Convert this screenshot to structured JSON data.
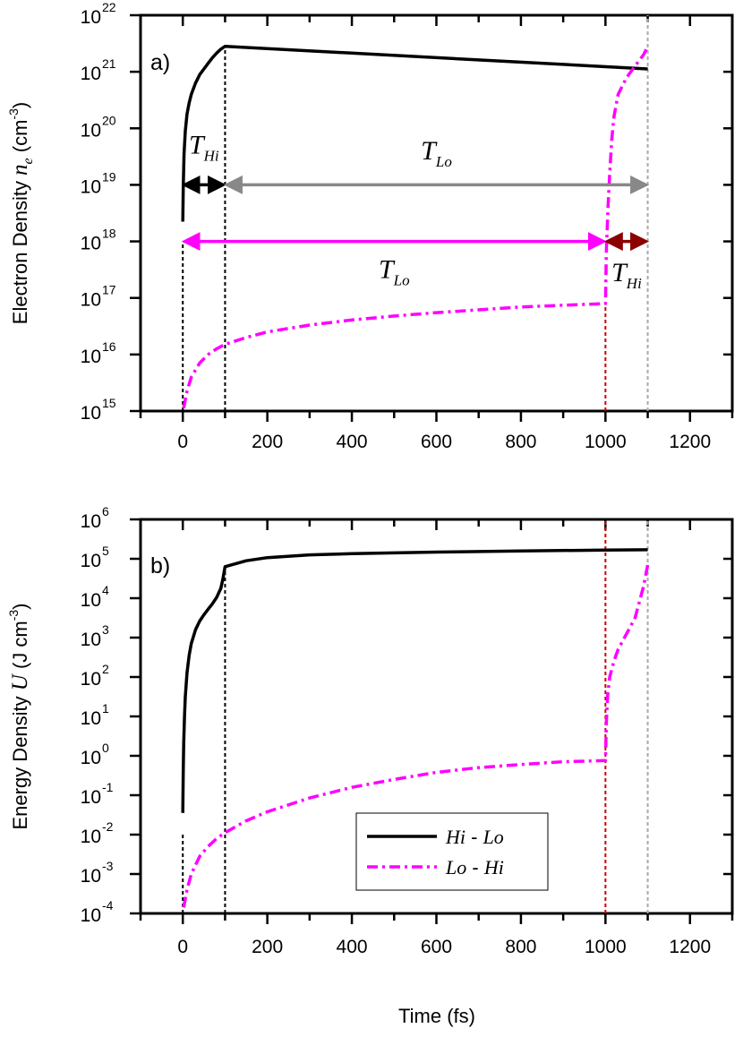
{
  "chart_data": [
    {
      "type": "line",
      "panel_label": "a)",
      "ylabel_parts": {
        "pre": "Electron Density ",
        "var": "n",
        "sub": "e",
        "unit_pre": " (cm",
        "unit_exp": "-3",
        "unit_post": ")"
      },
      "xlim": [
        -100,
        1300
      ],
      "x_ticks": [
        0,
        200,
        400,
        600,
        800,
        1000,
        1200
      ],
      "y_log_range": [
        15,
        22
      ],
      "y_tick_exponents": [
        "15",
        "16",
        "17",
        "18",
        "19",
        "20",
        "21",
        "22"
      ],
      "series": [
        {
          "name": "Hi - Lo",
          "color": "#000000",
          "style": "solid",
          "x": [
            0,
            1,
            3,
            6,
            10,
            15,
            20,
            30,
            40,
            50,
            60,
            70,
            80,
            90,
            100,
            1100
          ],
          "log10y": [
            18.35,
            18.95,
            19.55,
            19.95,
            20.25,
            20.45,
            20.6,
            20.8,
            20.95,
            21.05,
            21.15,
            21.25,
            21.33,
            21.4,
            21.45,
            21.05
          ]
        },
        {
          "name": "Lo - Hi",
          "color": "#ff00ff",
          "style": "dashdot",
          "x": [
            2,
            10,
            20,
            40,
            60,
            80,
            100,
            150,
            200,
            300,
            400,
            500,
            600,
            700,
            800,
            900,
            1000,
            1002,
            1006,
            1010,
            1015,
            1020,
            1030,
            1050,
            1070,
            1090,
            1100
          ],
          "log10y": [
            15.05,
            15.35,
            15.6,
            15.85,
            16.0,
            16.1,
            16.18,
            16.3,
            16.4,
            16.52,
            16.61,
            16.68,
            16.74,
            16.79,
            16.84,
            16.87,
            16.9,
            17.8,
            18.6,
            19.2,
            19.8,
            20.2,
            20.6,
            20.9,
            21.1,
            21.3,
            21.45
          ]
        }
      ],
      "vlines": [
        {
          "x": 0,
          "color": "#000000",
          "from": 15,
          "to": 18.0
        },
        {
          "x": 100,
          "color": "#000000",
          "from": 15,
          "to": 21.45
        },
        {
          "x": 1000,
          "color": "#cc0000",
          "from": 15,
          "to": 16.9
        },
        {
          "x": 1100,
          "color": "#aaaaaa",
          "from": 15,
          "to": 22
        }
      ],
      "arrows": [
        {
          "x0": 0,
          "x1": 100,
          "log10y": 19,
          "color": "#000000"
        },
        {
          "x0": 100,
          "x1": 1100,
          "log10y": 19,
          "color": "#888888"
        },
        {
          "x0": 0,
          "x1": 1000,
          "log10y": 18,
          "color": "#ff00ff"
        },
        {
          "x0": 1000,
          "x1": 1100,
          "log10y": 18,
          "color": "#8b0000"
        }
      ],
      "annotations": [
        {
          "main": "T",
          "sub": "Hi",
          "x": 50,
          "log10y": 19.55
        },
        {
          "main": "T",
          "sub": "Lo",
          "x": 600,
          "log10y": 19.45
        },
        {
          "main": "T",
          "sub": "Lo",
          "x": 500,
          "log10y": 17.35
        },
        {
          "main": "T",
          "sub": "Hi",
          "x": 1050,
          "log10y": 17.3
        }
      ]
    },
    {
      "type": "line",
      "panel_label": "b)",
      "ylabel_parts": {
        "pre": "Energy Density ",
        "var": "U",
        "sub": "",
        "unit_pre": " (J cm",
        "unit_exp": "-3",
        "unit_post": ")"
      },
      "xlim": [
        -100,
        1300
      ],
      "x_ticks": [
        0,
        200,
        400,
        600,
        800,
        1000,
        1200
      ],
      "y_log_range": [
        -4,
        6
      ],
      "y_tick_exponents": [
        "-4",
        "-3",
        "-2",
        "-1",
        "0",
        "1",
        "2",
        "3",
        "4",
        "5",
        "6"
      ],
      "series": [
        {
          "name": "Hi - Lo",
          "color": "#000000",
          "style": "solid",
          "x": [
            0,
            1,
            2,
            4,
            6,
            10,
            15,
            20,
            30,
            40,
            50,
            60,
            70,
            80,
            90,
            95,
            100,
            150,
            200,
            300,
            400,
            600,
            800,
            1000,
            1100
          ],
          "log10y": [
            -1.45,
            -0.4,
            0.3,
            1.0,
            1.5,
            2.1,
            2.55,
            2.85,
            3.2,
            3.42,
            3.58,
            3.72,
            3.86,
            4.02,
            4.25,
            4.5,
            4.8,
            4.95,
            5.03,
            5.1,
            5.13,
            5.17,
            5.2,
            5.22,
            5.23
          ]
        },
        {
          "name": "Lo - Hi",
          "color": "#ff00ff",
          "style": "dashdot",
          "x": [
            2,
            10,
            20,
            40,
            60,
            80,
            100,
            150,
            200,
            300,
            400,
            500,
            600,
            700,
            800,
            900,
            1000,
            1002,
            1005,
            1010,
            1020,
            1030,
            1050,
            1070,
            1090,
            1100
          ],
          "log10y": [
            -3.85,
            -3.4,
            -3.0,
            -2.55,
            -2.3,
            -2.1,
            -1.95,
            -1.65,
            -1.42,
            -1.07,
            -0.8,
            -0.6,
            -0.42,
            -0.3,
            -0.22,
            -0.15,
            -0.12,
            0.8,
            1.5,
            2.0,
            2.4,
            2.7,
            3.1,
            3.5,
            4.3,
            4.85
          ]
        }
      ],
      "vlines": [
        {
          "x": 0,
          "color": "#000000",
          "from": -4,
          "to": -2
        },
        {
          "x": 100,
          "color": "#000000",
          "from": -4,
          "to": 4.8
        },
        {
          "x": 1000,
          "color": "#cc0000",
          "from": -4,
          "to": 6
        },
        {
          "x": 1100,
          "color": "#aaaaaa",
          "from": -4,
          "to": 6
        }
      ],
      "legend": {
        "placement": "lower-center",
        "entries": [
          {
            "main": "Hi",
            "sep": " - ",
            "tail": "Lo",
            "color": "#000000",
            "style": "solid"
          },
          {
            "main": "Lo",
            "sep": " - ",
            "tail": "Hi",
            "color": "#ff00ff",
            "style": "dashdot"
          }
        ]
      }
    }
  ],
  "xlabel": "Time (fs)"
}
